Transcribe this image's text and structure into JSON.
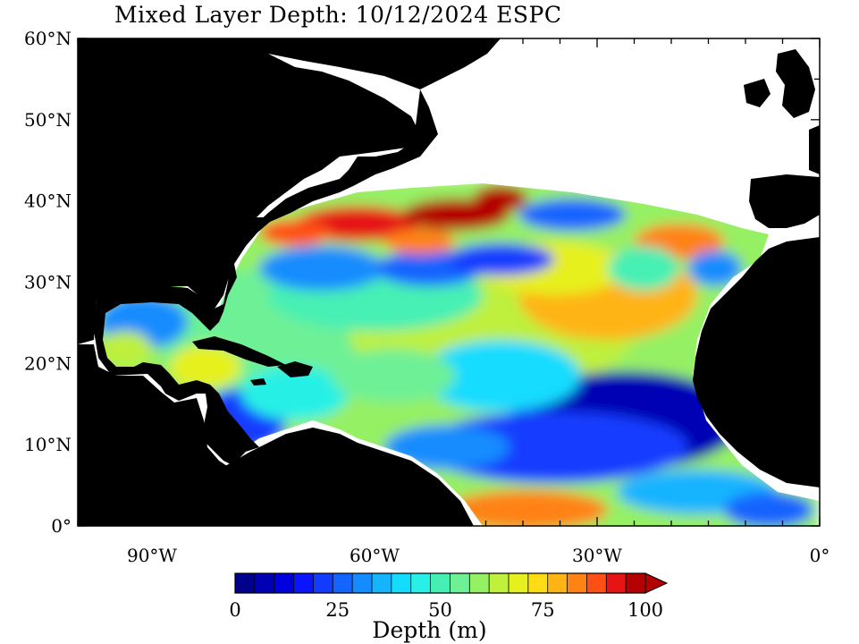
{
  "title": "Mixed Layer Depth: 10/12/2024 ESPC",
  "lat_labels": [
    "60°N",
    "50°N",
    "40°N",
    "30°N",
    "20°N",
    "10°N",
    "0°"
  ],
  "lon_labels": [
    "90°W",
    "60°W",
    "30°W",
    "0°"
  ],
  "map_extent": {
    "lon_min": -100,
    "lon_max": 0,
    "lat_min": 0,
    "lat_max": 60
  },
  "colorbar": {
    "label": "Depth (m)",
    "tick_labels": [
      "0",
      "25",
      "50",
      "75",
      "100"
    ],
    "min": 0,
    "max": 100,
    "step": 5,
    "extend": "max",
    "colors": [
      "#00008c",
      "#0000b4",
      "#0000dc",
      "#0a14ff",
      "#143cff",
      "#1464ff",
      "#148cff",
      "#14b4ff",
      "#14dcff",
      "#28f0e6",
      "#46f0b4",
      "#6ef096",
      "#96f064",
      "#bef03c",
      "#e6f01e",
      "#ffdc14",
      "#ffb414",
      "#ff8214",
      "#ff5014",
      "#e61414",
      "#b40000"
    ]
  },
  "colors": {
    "land": "#000000",
    "no_data": "#ffffff"
  }
}
